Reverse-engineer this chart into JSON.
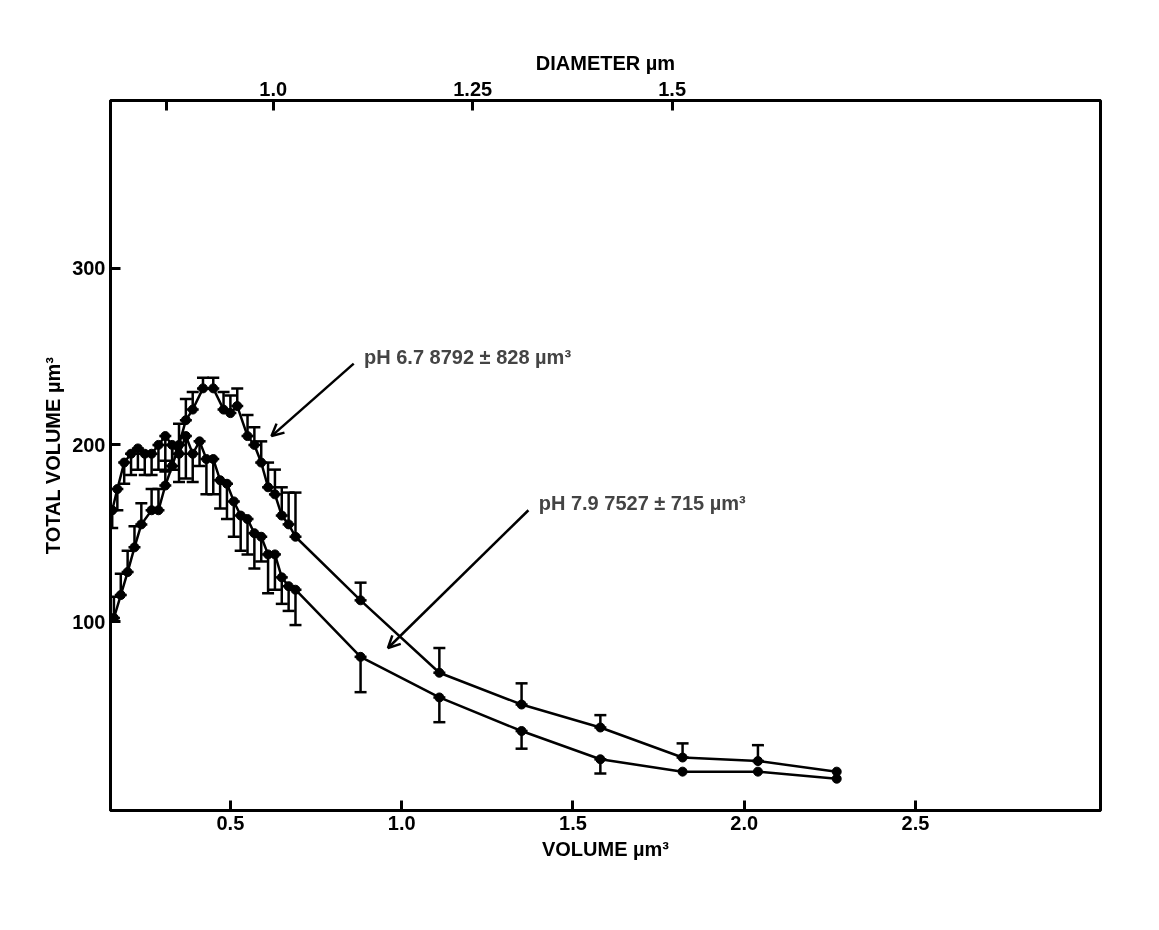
{
  "chart_data": {
    "type": "line",
    "xlabel": "VOLUME µm³",
    "ylabel": "TOTAL VOLUME µm³",
    "x2label": "DIAMETER µm",
    "xlim": [
      0.15,
      3.04
    ],
    "ylim": [
      -7,
      395
    ],
    "xticks": [
      0.5,
      {
        "value": 1,
        "label": "1.0"
      },
      1.5,
      {
        "value": 2,
        "label": "2.0"
      },
      2.5
    ],
    "yticks": [
      100,
      200,
      300
    ],
    "x2lim": [
      0.796,
      2.037
    ],
    "x2ticks": [
      {
        "value": 0.866,
        "label": null
      },
      {
        "value": 1.0,
        "label": "1.0"
      },
      1.25,
      1.5
    ],
    "grid": false,
    "marker": "circle",
    "line_style": "solid",
    "series": [
      {
        "color": "#000000",
        "x": [
          0.16,
          0.18,
          0.2,
          0.22,
          0.24,
          0.27,
          0.29,
          0.31,
          0.33,
          0.35,
          0.37,
          0.39,
          0.42,
          0.45,
          0.48,
          0.5,
          0.52,
          0.55,
          0.57,
          0.59,
          0.61,
          0.63,
          0.65,
          0.67,
          0.69,
          0.88,
          1.11,
          1.35,
          1.58,
          1.82,
          2.04,
          2.27
        ],
        "values": [
          102,
          115,
          128,
          142,
          155,
          163,
          163,
          177,
          188,
          200,
          214,
          220,
          232,
          232,
          220,
          218,
          222,
          205,
          200,
          190,
          176,
          172,
          160,
          155,
          148,
          112,
          71,
          53,
          40,
          23,
          21,
          15
        ],
        "errors": [
          [
            102,
            114
          ],
          [
            115,
            127
          ],
          [
            128,
            140
          ],
          [
            142,
            154
          ],
          [
            155,
            167
          ],
          [
            163,
            175
          ],
          [
            163,
            175
          ],
          [
            177,
            191
          ],
          [
            188,
            200
          ],
          [
            200,
            212
          ],
          [
            214,
            226
          ],
          [
            220,
            230
          ],
          [
            232,
            238
          ],
          [
            232,
            238
          ],
          [
            220,
            230
          ],
          [
            218,
            228
          ],
          [
            222,
            232
          ],
          [
            205,
            217
          ],
          [
            200,
            210
          ],
          [
            190,
            202
          ],
          [
            176,
            190
          ],
          [
            172,
            186
          ],
          [
            160,
            176
          ],
          [
            155,
            173
          ],
          [
            148,
            173
          ],
          [
            112,
            122
          ],
          [
            71,
            85
          ],
          [
            53,
            65
          ],
          [
            40,
            47
          ],
          [
            23,
            31
          ],
          [
            21,
            30
          ],
          null
        ]
      },
      {
        "color": "#000000",
        "x": [
          0.155,
          0.17,
          0.19,
          0.21,
          0.23,
          0.25,
          0.27,
          0.29,
          0.31,
          0.33,
          0.35,
          0.37,
          0.39,
          0.41,
          0.43,
          0.45,
          0.47,
          0.49,
          0.51,
          0.53,
          0.55,
          0.57,
          0.59,
          0.61,
          0.63,
          0.65,
          0.67,
          0.69,
          0.88,
          1.11,
          1.35,
          1.58,
          1.82,
          2.04,
          2.27
        ],
        "values": [
          163,
          175,
          190,
          195,
          198,
          195,
          195,
          200,
          205,
          200,
          195,
          205,
          195,
          202,
          192,
          192,
          180,
          178,
          168,
          160,
          158,
          150,
          148,
          138,
          138,
          125,
          120,
          118,
          80,
          57,
          38,
          22,
          15,
          15,
          11
        ],
        "errors": [
          [
            153,
            163
          ],
          [
            163,
            175
          ],
          [
            178,
            190
          ],
          [
            183,
            195
          ],
          [
            186,
            198
          ],
          [
            183,
            195
          ],
          [
            183,
            195
          ],
          [
            186,
            200
          ],
          [
            185,
            205
          ],
          [
            186,
            200
          ],
          [
            179,
            195
          ],
          [
            181,
            205
          ],
          [
            179,
            195
          ],
          [
            188,
            202
          ],
          [
            172,
            192
          ],
          [
            172,
            192
          ],
          [
            164,
            180
          ],
          [
            158,
            178
          ],
          [
            148,
            168
          ],
          [
            140,
            160
          ],
          [
            138,
            158
          ],
          [
            130,
            150
          ],
          [
            134,
            148
          ],
          [
            116,
            138
          ],
          [
            118,
            138
          ],
          [
            110,
            125
          ],
          [
            106,
            120
          ],
          [
            98,
            118
          ],
          [
            60,
            80
          ],
          [
            43,
            57
          ],
          [
            28,
            38
          ],
          [
            14,
            22
          ],
          null,
          null,
          null
        ]
      }
    ],
    "annotations": [
      "pH 6.7   8792 ± 828 µm³",
      "pH 7.9   7527 ± 715 µm³"
    ]
  }
}
